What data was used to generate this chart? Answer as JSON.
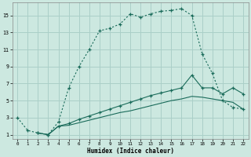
{
  "xlabel": "Humidex (Indice chaleur)",
  "bg_color": "#cce8e0",
  "grid_color": "#aacfc8",
  "line_color": "#1a6b5a",
  "xlim": [
    -0.5,
    22.5
  ],
  "ylim": [
    0.5,
    16.5
  ],
  "xticks": [
    0,
    1,
    2,
    3,
    4,
    5,
    6,
    7,
    8,
    9,
    10,
    11,
    12,
    13,
    14,
    15,
    16,
    17,
    18,
    19,
    20,
    21,
    22
  ],
  "yticks": [
    1,
    3,
    5,
    7,
    9,
    11,
    13,
    15
  ],
  "line1_x": [
    0,
    1,
    2,
    3,
    4,
    5,
    6,
    7,
    8,
    9,
    10,
    11,
    12,
    13,
    14,
    15,
    16,
    17,
    18,
    19,
    20,
    21,
    22
  ],
  "line1_y": [
    3.0,
    1.5,
    1.2,
    1.0,
    2.5,
    6.5,
    9.0,
    11.0,
    13.2,
    13.5,
    14.0,
    15.2,
    14.8,
    15.2,
    15.5,
    15.6,
    15.8,
    15.0,
    10.5,
    8.2,
    5.0,
    4.2,
    4.0
  ],
  "line2_x": [
    2,
    3,
    4,
    5,
    6,
    7,
    8,
    9,
    10,
    11,
    12,
    13,
    14,
    15,
    16,
    17,
    18,
    19,
    20,
    21,
    22
  ],
  "line2_y": [
    1.2,
    1.0,
    2.0,
    2.3,
    2.8,
    3.2,
    3.6,
    4.0,
    4.4,
    4.8,
    5.2,
    5.6,
    5.9,
    6.2,
    6.5,
    8.0,
    6.5,
    6.5,
    5.8,
    6.5,
    5.8
  ],
  "line3_x": [
    2,
    3,
    4,
    5,
    6,
    7,
    8,
    9,
    10,
    11,
    12,
    13,
    14,
    15,
    16,
    17,
    18,
    19,
    20,
    21,
    22
  ],
  "line3_y": [
    1.2,
    1.0,
    2.0,
    2.1,
    2.4,
    2.7,
    3.0,
    3.3,
    3.6,
    3.8,
    4.1,
    4.4,
    4.7,
    5.0,
    5.2,
    5.5,
    5.4,
    5.2,
    5.0,
    4.8,
    4.0
  ]
}
